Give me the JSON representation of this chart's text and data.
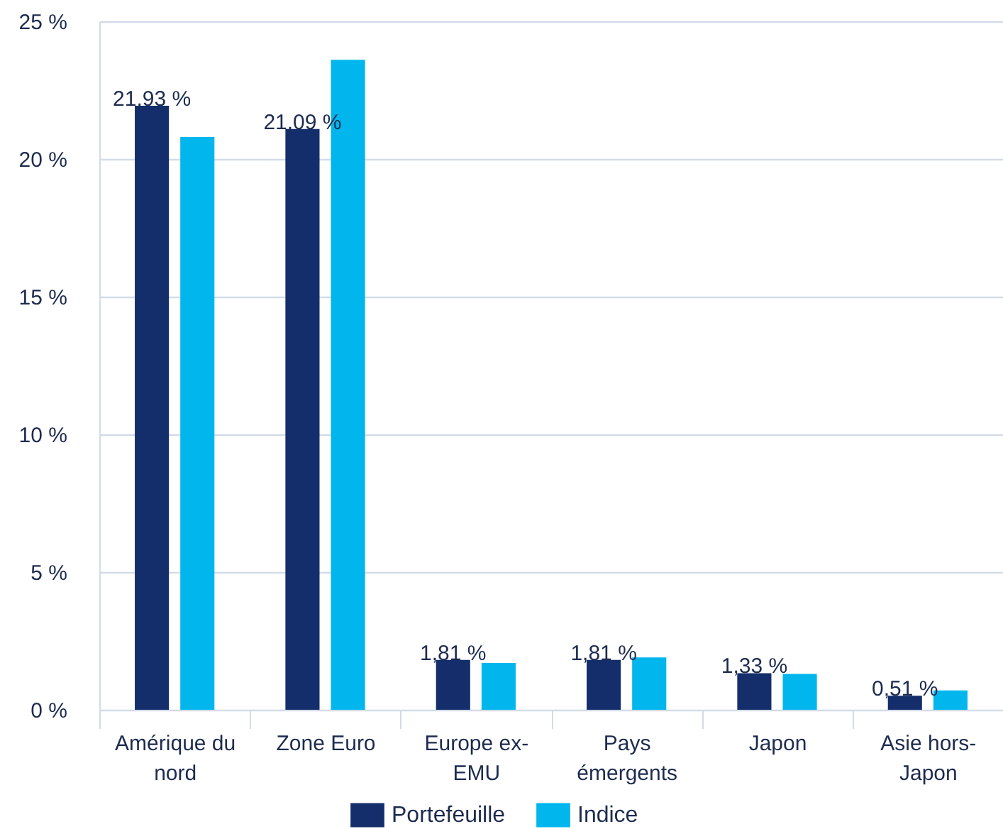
{
  "chart_data": {
    "type": "bar",
    "categories": [
      "Amérique du nord",
      "Zone Euro",
      "Europe ex-EMU",
      "Pays émergents",
      "Japon",
      "Asie hors-Japon"
    ],
    "series": [
      {
        "name": "Portefeuille",
        "color": "#132e6a",
        "values": [
          21.93,
          21.09,
          1.81,
          1.81,
          1.33,
          0.51
        ],
        "value_labels": [
          "21,93 %",
          "21,09 %",
          "1,81 %",
          "1,81 %",
          "1,33 %",
          "0,51 %"
        ]
      },
      {
        "name": "Indice",
        "color": "#00b6ec",
        "values": [
          20.8,
          23.6,
          1.7,
          1.9,
          1.3,
          0.7
        ]
      }
    ],
    "ylim": [
      0,
      25
    ],
    "yticks": [
      {
        "value": 0,
        "label": "0 %"
      },
      {
        "value": 5,
        "label": "5 %"
      },
      {
        "value": 10,
        "label": "10 %"
      },
      {
        "value": 15,
        "label": "15 %"
      },
      {
        "value": 20,
        "label": "20 %"
      },
      {
        "value": 25,
        "label": "25 %"
      }
    ],
    "grid": "y",
    "legend": "bottom"
  }
}
